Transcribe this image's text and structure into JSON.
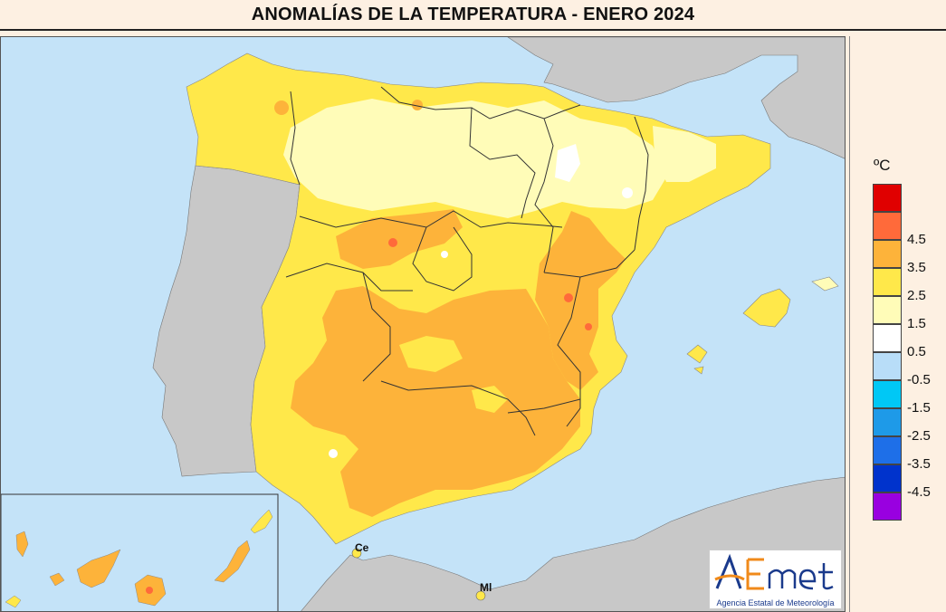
{
  "title": "ANOMALÍAS DE LA TEMPERATURA - ENERO 2024",
  "legend": {
    "unit": "ºC",
    "colors": [
      "#9900e0",
      "#0033cc",
      "#1e6fe8",
      "#1e9ae8",
      "#00c8f5",
      "#b8ddf8",
      "#ffffff",
      "#fffcb8",
      "#ffe84a",
      "#fdb33a",
      "#ff6a3a",
      "#e00000"
    ],
    "labels": [
      "-4.5",
      "-3.5",
      "-2.5",
      "-1.5",
      "-0.5",
      "0.5",
      "1.5",
      "2.5",
      "3.5",
      "4.5"
    ]
  },
  "places": {
    "ceuta": "Ce",
    "melilla": "Ml"
  },
  "logo": {
    "name": "AEmet",
    "subtitle": "Agencia Estatal de Meteorología"
  },
  "colors": {
    "sea": "#c4e3f8",
    "land": "#c8c8c8",
    "background": "#fdf0e2"
  }
}
